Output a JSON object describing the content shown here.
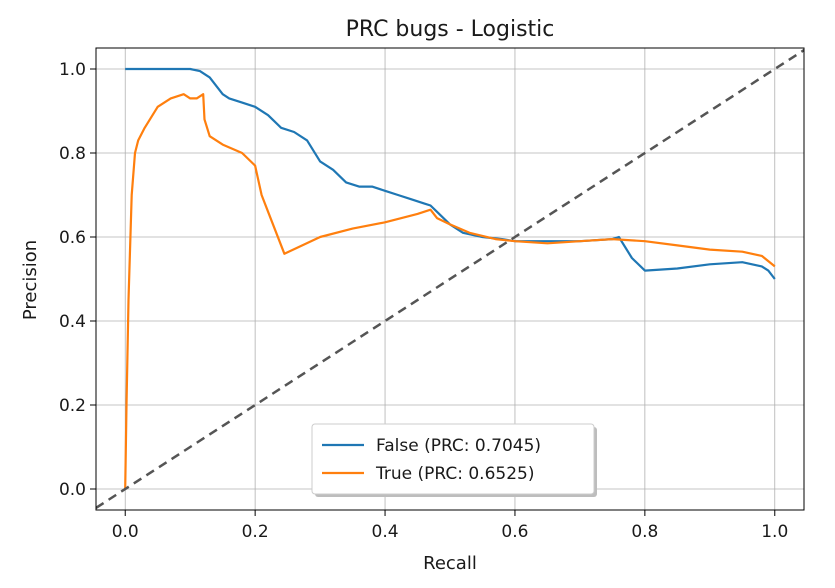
{
  "chart_data": {
    "type": "line",
    "title": "PRC bugs - Logistic",
    "xlabel": "Recall",
    "ylabel": "Precision",
    "xlim": [
      -0.045,
      1.045
    ],
    "ylim": [
      -0.05,
      1.05
    ],
    "xticks": [
      0.0,
      0.2,
      0.4,
      0.6,
      0.8,
      1.0
    ],
    "xtick_labels": [
      "0.0",
      "0.2",
      "0.4",
      "0.6",
      "0.8",
      "1.0"
    ],
    "yticks": [
      0.0,
      0.2,
      0.4,
      0.6,
      0.8,
      1.0
    ],
    "ytick_labels": [
      "0.0",
      "0.2",
      "0.4",
      "0.6",
      "0.8",
      "1.0"
    ],
    "grid": true,
    "legend_position": "bottom-center",
    "series": [
      {
        "name": "False (PRC: 0.7045)",
        "color": "#1f77b4",
        "x": [
          0.0,
          0.05,
          0.1,
          0.115,
          0.13,
          0.15,
          0.16,
          0.18,
          0.2,
          0.22,
          0.24,
          0.26,
          0.28,
          0.3,
          0.32,
          0.34,
          0.36,
          0.38,
          0.4,
          0.42,
          0.44,
          0.46,
          0.47,
          0.48,
          0.5,
          0.52,
          0.55,
          0.58,
          0.6,
          0.65,
          0.7,
          0.75,
          0.76,
          0.78,
          0.8,
          0.85,
          0.9,
          0.95,
          0.98,
          0.99,
          1.0
        ],
        "y": [
          1.0,
          1.0,
          1.0,
          0.995,
          0.98,
          0.94,
          0.93,
          0.92,
          0.91,
          0.89,
          0.86,
          0.85,
          0.83,
          0.78,
          0.76,
          0.73,
          0.72,
          0.72,
          0.71,
          0.7,
          0.69,
          0.68,
          0.675,
          0.66,
          0.63,
          0.61,
          0.6,
          0.595,
          0.59,
          0.59,
          0.59,
          0.595,
          0.6,
          0.55,
          0.52,
          0.525,
          0.535,
          0.54,
          0.53,
          0.52,
          0.5
        ]
      },
      {
        "name": "True (PRC: 0.6525)",
        "color": "#ff7f0e",
        "x": [
          0.0,
          0.002,
          0.005,
          0.01,
          0.015,
          0.02,
          0.03,
          0.05,
          0.07,
          0.09,
          0.1,
          0.11,
          0.12,
          0.122,
          0.13,
          0.15,
          0.18,
          0.2,
          0.21,
          0.22,
          0.245,
          0.3,
          0.35,
          0.4,
          0.45,
          0.47,
          0.48,
          0.5,
          0.53,
          0.57,
          0.6,
          0.65,
          0.7,
          0.75,
          0.8,
          0.85,
          0.9,
          0.95,
          0.98,
          1.0
        ],
        "y": [
          0.0,
          0.2,
          0.45,
          0.7,
          0.8,
          0.83,
          0.86,
          0.91,
          0.93,
          0.94,
          0.93,
          0.93,
          0.94,
          0.88,
          0.84,
          0.82,
          0.8,
          0.77,
          0.7,
          0.66,
          0.56,
          0.6,
          0.62,
          0.635,
          0.655,
          0.665,
          0.645,
          0.63,
          0.61,
          0.595,
          0.59,
          0.585,
          0.59,
          0.595,
          0.59,
          0.58,
          0.57,
          0.565,
          0.555,
          0.53
        ]
      }
    ],
    "reference_line": {
      "x": [
        -0.045,
        1.045
      ],
      "y": [
        -0.045,
        1.045
      ],
      "color": "#555555",
      "style": "dashed"
    }
  }
}
